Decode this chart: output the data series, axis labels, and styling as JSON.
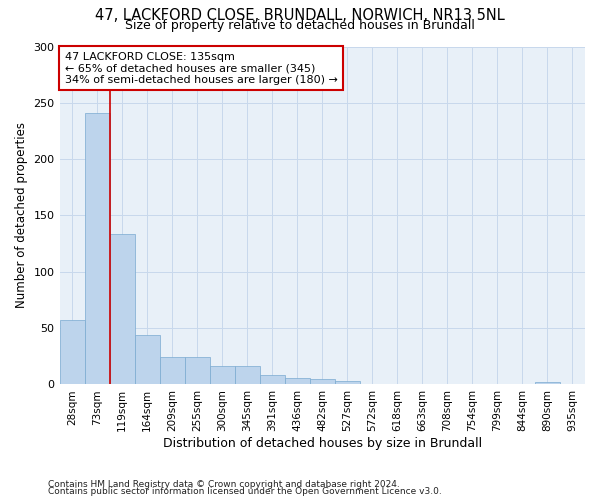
{
  "title_line1": "47, LACKFORD CLOSE, BRUNDALL, NORWICH, NR13 5NL",
  "title_line2": "Size of property relative to detached houses in Brundall",
  "xlabel": "Distribution of detached houses by size in Brundall",
  "ylabel": "Number of detached properties",
  "categories": [
    "28sqm",
    "73sqm",
    "119sqm",
    "164sqm",
    "209sqm",
    "255sqm",
    "300sqm",
    "345sqm",
    "391sqm",
    "436sqm",
    "482sqm",
    "527sqm",
    "572sqm",
    "618sqm",
    "663sqm",
    "708sqm",
    "754sqm",
    "799sqm",
    "844sqm",
    "890sqm",
    "935sqm"
  ],
  "values": [
    57,
    241,
    134,
    44,
    24,
    24,
    16,
    16,
    8,
    6,
    5,
    3,
    0,
    0,
    0,
    0,
    0,
    0,
    0,
    2,
    0
  ],
  "bar_color": "#bdd4ec",
  "bar_edge_color": "#7aaad0",
  "grid_color": "#c8d8ec",
  "vline_x_index": 1.5,
  "vline_color": "#cc0000",
  "annotation_text": "47 LACKFORD CLOSE: 135sqm\n← 65% of detached houses are smaller (345)\n34% of semi-detached houses are larger (180) →",
  "annotation_box_facecolor": "#ffffff",
  "annotation_box_edgecolor": "#cc0000",
  "ylim": [
    0,
    300
  ],
  "yticks": [
    0,
    50,
    100,
    150,
    200,
    250,
    300
  ],
  "footer_line1": "Contains HM Land Registry data © Crown copyright and database right 2024.",
  "footer_line2": "Contains public sector information licensed under the Open Government Licence v3.0.",
  "bg_color": "#ffffff",
  "plot_bg_color": "#e8f0f8"
}
